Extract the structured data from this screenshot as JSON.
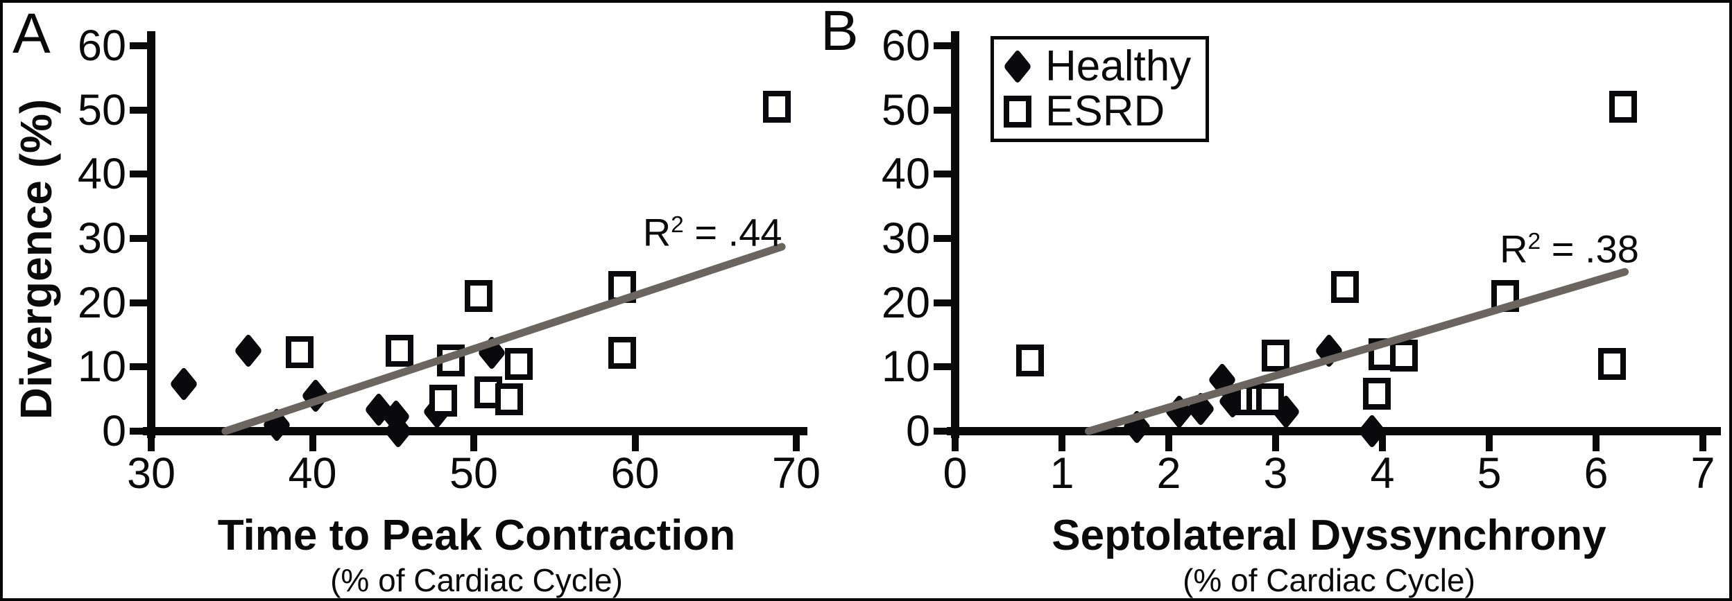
{
  "figure": {
    "panel_a_letter": "A",
    "panel_b_letter": "B",
    "ylabel": "Divergence (%)",
    "legend": {
      "healthy_label": "Healthy",
      "esrd_label": "ESRD"
    },
    "colors": {
      "marker_black": "#0a0a0c",
      "trendline_gray": "#6b6560",
      "background": "#ffffff"
    }
  },
  "chart_data": [
    {
      "type": "scatter",
      "panel": "A",
      "title": "Time to Peak Contraction",
      "subtitle": "(% of Cardiac Cycle)",
      "ylabel": "Divergence (%)",
      "xlim": [
        30,
        70
      ],
      "ylim": [
        0,
        60
      ],
      "xticks": [
        30,
        40,
        50,
        60,
        70
      ],
      "xtick_labels": [
        "30",
        "40",
        "50",
        "60",
        "70"
      ],
      "yticks": [
        0,
        10,
        20,
        30,
        40,
        50,
        60
      ],
      "ytick_labels": [
        "0",
        "10",
        "20",
        "30",
        "40",
        "50",
        "60"
      ],
      "grid": false,
      "series": [
        {
          "name": "Healthy",
          "marker": "filled-diamond",
          "points": [
            [
              32.0,
              7.3
            ],
            [
              36.0,
              12.5
            ],
            [
              37.8,
              1.0
            ],
            [
              40.2,
              5.5
            ],
            [
              44.1,
              3.3
            ],
            [
              45.2,
              2.3
            ],
            [
              45.3,
              0.0
            ],
            [
              47.7,
              3.0
            ],
            [
              51.1,
              12.2
            ]
          ]
        },
        {
          "name": "ESRD",
          "marker": "open-square",
          "points": [
            [
              39.2,
              12.3
            ],
            [
              45.4,
              12.5
            ],
            [
              48.1,
              4.7
            ],
            [
              48.6,
              11.0
            ],
            [
              50.3,
              21.0
            ],
            [
              50.9,
              6.0
            ],
            [
              52.2,
              5.0
            ],
            [
              52.8,
              10.5
            ],
            [
              59.2,
              12.2
            ],
            [
              59.2,
              22.5
            ],
            [
              68.8,
              50.5
            ]
          ]
        }
      ],
      "trendline": {
        "x1": 34.6,
        "y1": 0,
        "x2": 69.1,
        "y2": 28.7
      },
      "annotation": {
        "base": "R",
        "sup": "2",
        "rest": " = .44",
        "x": 64.8,
        "y": 32
      }
    },
    {
      "type": "scatter",
      "panel": "B",
      "title": "Septolateral Dyssynchrony",
      "subtitle": "(% of Cardiac Cycle)",
      "ylabel": "Divergence (%)",
      "xlim": [
        0,
        7
      ],
      "ylim": [
        0,
        60
      ],
      "xticks": [
        0,
        1,
        2,
        3,
        4,
        5,
        6,
        7
      ],
      "xtick_labels": [
        "0",
        "1",
        "2",
        "3",
        "4",
        "5",
        "6",
        "7"
      ],
      "yticks": [
        0,
        10,
        20,
        30,
        40,
        50,
        60
      ],
      "ytick_labels": [
        "0",
        "10",
        "20",
        "30",
        "40",
        "50",
        "60"
      ],
      "grid": false,
      "series": [
        {
          "name": "Healthy",
          "marker": "filled-diamond",
          "points": [
            [
              1.7,
              0.7
            ],
            [
              2.1,
              3.0
            ],
            [
              2.3,
              3.5
            ],
            [
              2.5,
              8.0
            ],
            [
              2.6,
              4.6
            ],
            [
              3.1,
              3.0
            ],
            [
              3.5,
              12.5
            ],
            [
              3.9,
              0.0
            ]
          ]
        },
        {
          "name": "ESRD",
          "marker": "open-square",
          "points": [
            [
              0.7,
              11.0
            ],
            [
              2.75,
              5.0
            ],
            [
              2.86,
              5.0
            ],
            [
              2.95,
              5.0
            ],
            [
              3.0,
              11.8
            ],
            [
              3.65,
              22.5
            ],
            [
              3.95,
              5.8
            ],
            [
              4.0,
              12.0
            ],
            [
              4.2,
              11.8
            ],
            [
              5.15,
              21.0
            ],
            [
              6.15,
              10.5
            ],
            [
              6.25,
              50.5
            ]
          ]
        }
      ],
      "trendline": {
        "x1": 1.25,
        "y1": 0,
        "x2": 6.27,
        "y2": 24.8
      },
      "annotation": {
        "base": "R",
        "sup": "2",
        "rest": " = .38",
        "x": 5.75,
        "y": 29.5
      }
    }
  ]
}
